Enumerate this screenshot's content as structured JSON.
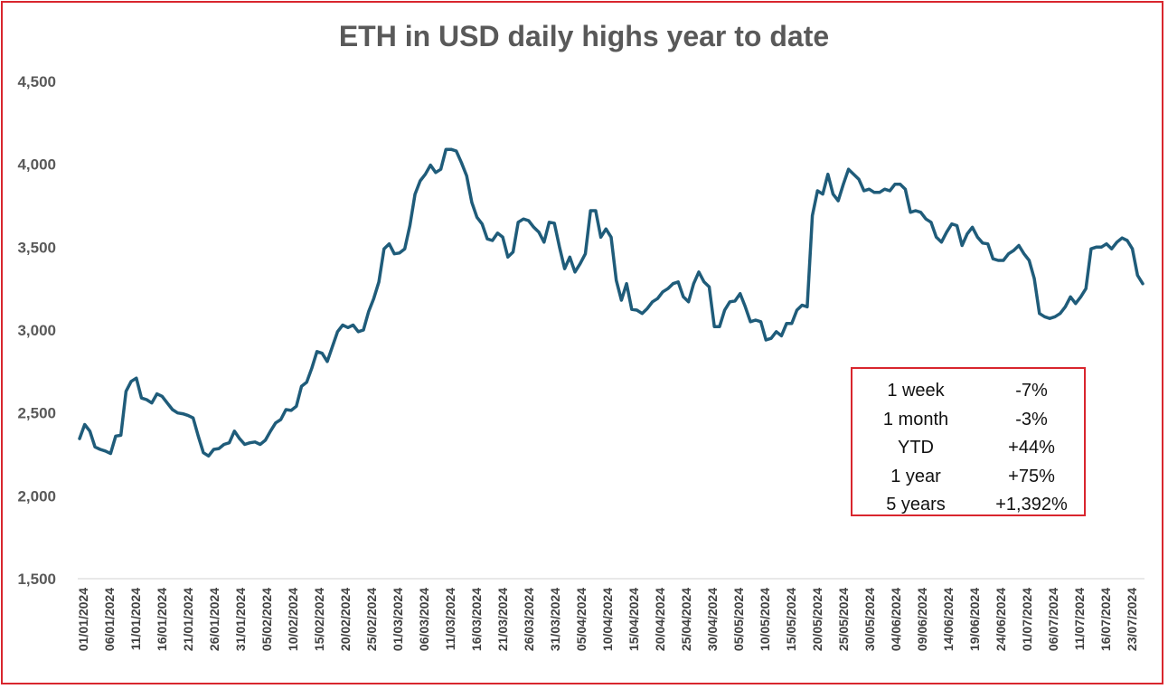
{
  "chart_data": {
    "type": "line",
    "title": "ETH in USD daily highs year to date",
    "xlabel": "",
    "ylabel": "",
    "ylim": [
      1500,
      4500
    ],
    "yticks": [
      "1,500",
      "2,000",
      "2,500",
      "3,000",
      "3,500",
      "4,000",
      "4,500"
    ],
    "ytick_values": [
      1500,
      2000,
      2500,
      3000,
      3500,
      4000,
      4500
    ],
    "grid": false,
    "legend": "none",
    "xtick_labels": [
      "01/01/2024",
      "06/01/2024",
      "11/01/2024",
      "16/01/2024",
      "21/01/2024",
      "26/01/2024",
      "31/01/2024",
      "05/02/2024",
      "10/02/2024",
      "15/02/2024",
      "20/02/2024",
      "25/02/2024",
      "01/03/2024",
      "06/03/2024",
      "11/03/2024",
      "16/03/2024",
      "21/03/2024",
      "26/03/2024",
      "31/03/2024",
      "05/04/2024",
      "10/04/2024",
      "15/04/2024",
      "20/04/2024",
      "25/04/2024",
      "30/04/2024",
      "05/05/2024",
      "10/05/2024",
      "15/05/2024",
      "20/05/2024",
      "25/05/2024",
      "30/05/2024",
      "04/06/2024",
      "09/06/2024",
      "14/06/2024",
      "19/06/2024",
      "24/06/2024",
      "01/07/2024",
      "06/07/2024",
      "11/07/2024",
      "16/07/2024",
      "23/07/2024"
    ],
    "series": [
      {
        "name": "",
        "color": "#1f5c7a",
        "values": [
          2345,
          2430,
          2390,
          2295,
          2280,
          2270,
          2255,
          2360,
          2365,
          2630,
          2690,
          2710,
          2590,
          2580,
          2560,
          2615,
          2600,
          2560,
          2520,
          2500,
          2495,
          2485,
          2470,
          2360,
          2260,
          2240,
          2280,
          2285,
          2310,
          2320,
          2390,
          2345,
          2310,
          2320,
          2325,
          2310,
          2335,
          2390,
          2440,
          2460,
          2520,
          2515,
          2540,
          2660,
          2685,
          2770,
          2870,
          2860,
          2810,
          2900,
          2990,
          3030,
          3015,
          3030,
          2990,
          3000,
          3110,
          3190,
          3290,
          3490,
          3520,
          3460,
          3465,
          3490,
          3630,
          3820,
          3900,
          3940,
          3995,
          3950,
          3970,
          4090,
          4090,
          4080,
          4010,
          3930,
          3770,
          3680,
          3640,
          3550,
          3540,
          3585,
          3560,
          3440,
          3470,
          3650,
          3670,
          3660,
          3620,
          3590,
          3530,
          3650,
          3645,
          3500,
          3370,
          3440,
          3350,
          3400,
          3460,
          3720,
          3720,
          3560,
          3610,
          3560,
          3300,
          3180,
          3280,
          3125,
          3120,
          3100,
          3130,
          3170,
          3190,
          3230,
          3250,
          3280,
          3290,
          3200,
          3170,
          3280,
          3350,
          3290,
          3260,
          3020,
          3020,
          3120,
          3170,
          3175,
          3220,
          3140,
          3050,
          3060,
          3050,
          2940,
          2950,
          2990,
          2965,
          3040,
          3040,
          3120,
          3150,
          3140,
          3690,
          3840,
          3820,
          3940,
          3820,
          3780,
          3880,
          3970,
          3940,
          3910,
          3840,
          3850,
          3830,
          3830,
          3850,
          3840,
          3880,
          3880,
          3850,
          3710,
          3720,
          3710,
          3670,
          3650,
          3560,
          3530,
          3590,
          3640,
          3630,
          3510,
          3580,
          3620,
          3560,
          3525,
          3520,
          3430,
          3420,
          3420,
          3460,
          3480,
          3510,
          3460,
          3420,
          3310,
          3100,
          3080,
          3070,
          3080,
          3100,
          3140,
          3200,
          3160,
          3200,
          3250,
          3490,
          3500,
          3500,
          3520,
          3490,
          3530,
          3555,
          3540,
          3490,
          3330,
          3280
        ]
      }
    ]
  },
  "stats_table": {
    "rows": [
      {
        "label": "1 week",
        "value": "-7%"
      },
      {
        "label": "1 month",
        "value": "-3%"
      },
      {
        "label": "YTD",
        "value": "+44%"
      },
      {
        "label": "1 year",
        "value": "+75%"
      },
      {
        "label": "5 years",
        "value": "+1,392%"
      }
    ]
  }
}
